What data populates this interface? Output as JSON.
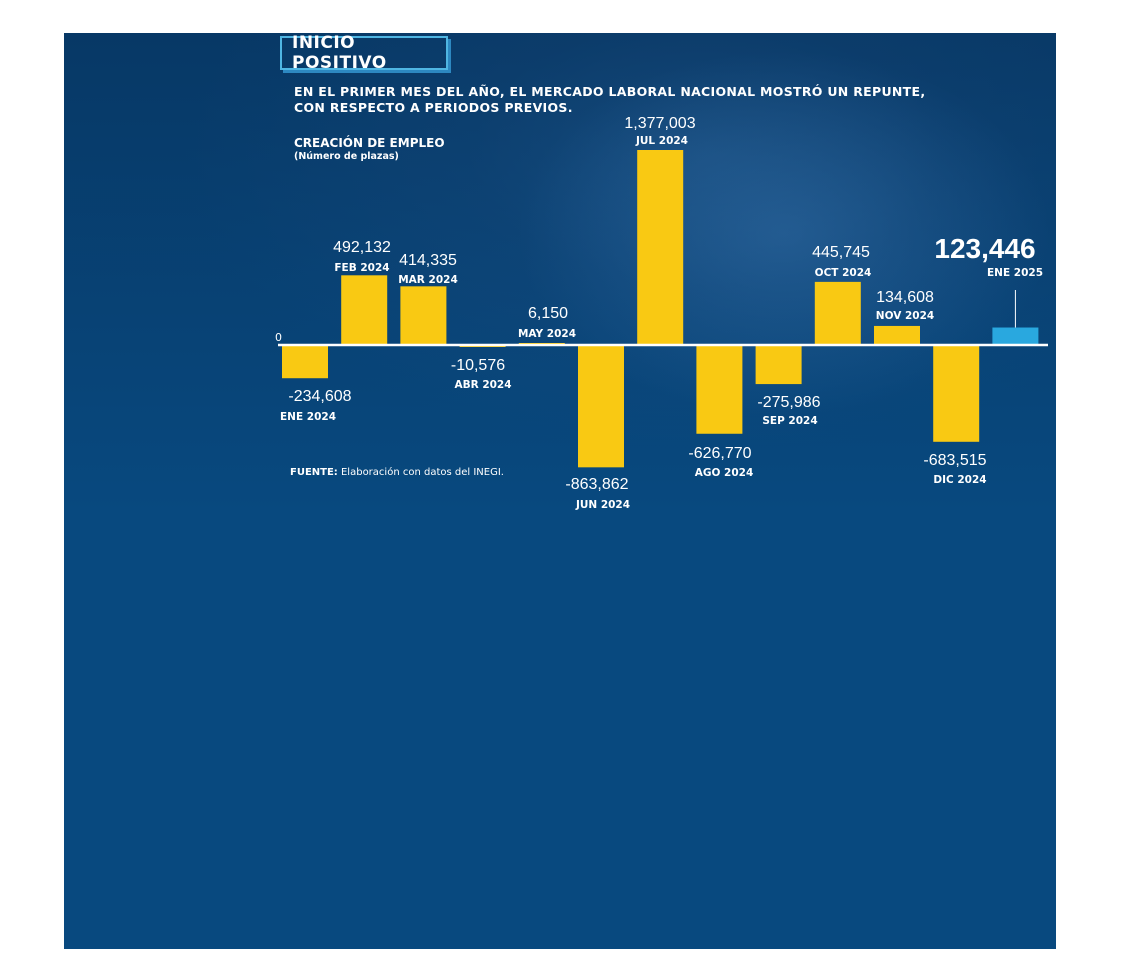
{
  "header": {
    "title": "INICIO POSITIVO",
    "subtitle_line1": "EN EL PRIMER MES DEL AÑO, EL MERCADO LABORAL NACIONAL MOSTRÓ UN REPUNTE,",
    "subtitle_line2": "CON RESPECTO A PERIODOS PREVIOS."
  },
  "chart_data": {
    "type": "bar",
    "title": "CREACIÓN DE EMPLEO",
    "unit_note": "(Número de plazas)",
    "zero_label": "0",
    "categories": [
      "ENE 2024",
      "FEB 2024",
      "MAR 2024",
      "ABR 2024",
      "MAY 2024",
      "JUN 2024",
      "JUL 2024",
      "AGO 2024",
      "SEP 2024",
      "OCT 2024",
      "NOV 2024",
      "DIC 2024",
      "ENE 2025"
    ],
    "values": [
      -234608,
      492132,
      414335,
      -10576,
      6150,
      -863862,
      1377003,
      -626770,
      -275986,
      445745,
      134608,
      -683515,
      123446
    ],
    "value_labels": [
      "-234,608",
      "492,132",
      "414,335",
      "-10,576",
      "6,150",
      "-863,862",
      "1,377,003",
      "-626,770",
      "-275,986",
      "445,745",
      "134,608",
      "-683,515",
      "123,446"
    ],
    "highlight_index": 12,
    "colors": {
      "bar": "#f9c913",
      "highlight": "#29a8df",
      "axis": "#ffffff"
    }
  },
  "footer": {
    "source_key": "FUENTE:",
    "source_text": " Elaboración con datos del INEGI."
  }
}
